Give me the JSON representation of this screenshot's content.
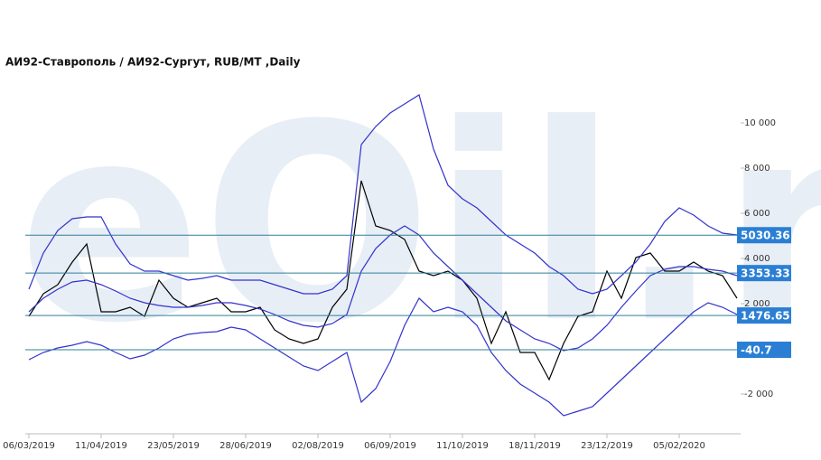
{
  "chart_data": {
    "type": "line",
    "title": "АИ92-Ставрополь / АИ92-Сургут,  RUB/MT ,Daily",
    "watermark": "eOil.ru",
    "categories": [
      "06/03/2019",
      null,
      null,
      null,
      null,
      "11/04/2019",
      null,
      null,
      null,
      null,
      "23/05/2019",
      null,
      null,
      null,
      null,
      "28/06/2019",
      null,
      null,
      null,
      null,
      "02/08/2019",
      null,
      null,
      null,
      null,
      "06/09/2019",
      null,
      null,
      null,
      null,
      "11/10/2019",
      null,
      null,
      null,
      null,
      "18/11/2019",
      null,
      null,
      null,
      null,
      "23/12/2019",
      null,
      null,
      null,
      null,
      "05/02/2020",
      null,
      null,
      null,
      null
    ],
    "series": [
      {
        "color": "#000000",
        "values": [
          1440,
          2440,
          2840,
          3840,
          4640,
          1640,
          1640,
          1840,
          1440,
          3040,
          2240,
          1840,
          2040,
          2240,
          1640,
          1640,
          1840,
          840,
          440,
          240,
          440,
          1840,
          2640,
          7440,
          5440,
          5240,
          4840,
          3440,
          3240,
          3440,
          3040,
          2240,
          240,
          1640,
          -160,
          -160,
          -1360,
          240,
          1440,
          1640,
          3440,
          2240,
          4040,
          4240,
          3440,
          3440,
          3840,
          3440,
          3240,
          2240
        ]
      },
      {
        "color": "#3333cc",
        "values": [
          2640,
          4240,
          5240,
          5760,
          5840,
          5840,
          4640,
          3760,
          3440,
          3440,
          3240,
          3040,
          3120,
          3240,
          3040,
          3040,
          3040,
          2840,
          2640,
          2440,
          2440,
          2640,
          3240,
          9040,
          9840,
          10440,
          10840,
          11240,
          8840,
          7240,
          6640,
          6240,
          5640,
          5040,
          4640,
          4240,
          3640,
          3240,
          2640,
          2440,
          2640,
          3240,
          3840,
          4640,
          5640,
          6240,
          5920,
          5440,
          5120,
          5040
        ]
      },
      {
        "color": "#3333cc",
        "values": [
          1640,
          2240,
          2640,
          2960,
          3040,
          2840,
          2560,
          2240,
          2040,
          1920,
          1840,
          1840,
          1920,
          2040,
          2040,
          1920,
          1760,
          1520,
          1240,
          1040,
          960,
          1120,
          1520,
          3440,
          4440,
          5040,
          5440,
          5040,
          4240,
          3640,
          3040,
          2440,
          1840,
          1240,
          840,
          440,
          240,
          -80,
          40,
          440,
          1040,
          1840,
          2560,
          3240,
          3520,
          3640,
          3640,
          3520,
          3440,
          3240
        ]
      },
      {
        "color": "#3333cc",
        "values": [
          -480,
          -160,
          40,
          160,
          320,
          160,
          -160,
          -440,
          -280,
          40,
          440,
          640,
          720,
          760,
          960,
          840,
          440,
          40,
          -360,
          -760,
          -960,
          -560,
          -160,
          -2360,
          -1760,
          -560,
          1040,
          2240,
          1640,
          1840,
          1640,
          1040,
          -160,
          -960,
          -1560,
          -1960,
          -2360,
          -2960,
          -2760,
          -2560,
          -1960,
          -1360,
          -760,
          -160,
          440,
          1040,
          1640,
          2040,
          1840,
          1520
        ]
      }
    ],
    "levels": [
      5030.36,
      3353.33,
      1476.65,
      -40.7
    ],
    "level_color": "#2a7fd4",
    "ylim": [
      -3680,
      11840
    ],
    "yticks": [
      {
        "value": -2000,
        "label": "-2 000"
      },
      {
        "value": 2000,
        "label": "2 000"
      },
      {
        "value": 4000,
        "label": "4 000"
      },
      {
        "value": 6000,
        "label": "6 000"
      },
      {
        "value": 8000,
        "label": "8 000"
      },
      {
        "value": 10000,
        "label": "10 000"
      }
    ]
  }
}
